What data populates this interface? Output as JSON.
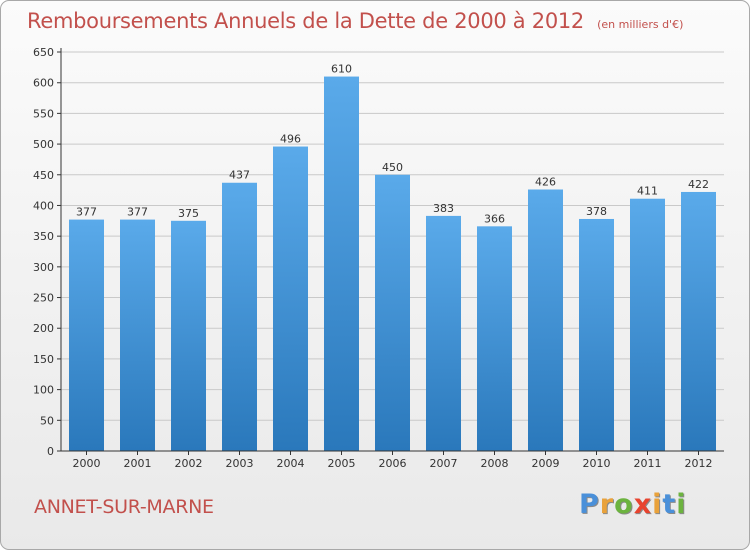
{
  "title": "Remboursements Annuels de la Dette de 2000 à 2012",
  "subtitle": "(en milliers d'€)",
  "city": "ANNET-SUR-MARNE",
  "logo": {
    "letters": [
      "P",
      "r",
      "o",
      "x",
      "i",
      "t",
      "i"
    ],
    "colors": [
      "#4a90d9",
      "#e9a23b",
      "#6cb33f",
      "#e8442f",
      "#e9a23b",
      "#4a90d9",
      "#6cb33f"
    ]
  },
  "colors": {
    "bar_top": "#5aaaea",
    "bar_bottom": "#2a78bb",
    "grid": "#c9c9c9",
    "axis": "#333333"
  },
  "chart_data": {
    "type": "bar",
    "categories": [
      "2000",
      "2001",
      "2002",
      "2003",
      "2004",
      "2005",
      "2006",
      "2007",
      "2008",
      "2009",
      "2010",
      "2011",
      "2012"
    ],
    "values": [
      377,
      377,
      375,
      437,
      496,
      610,
      450,
      383,
      366,
      426,
      378,
      411,
      422
    ],
    "data_labels": [
      "377",
      "377",
      "375",
      "437",
      "496",
      "610",
      "450",
      "383",
      "366",
      "426",
      "378",
      "411",
      "422"
    ],
    "title": "Remboursements Annuels de la Dette de 2000 à 2012",
    "xlabel": "",
    "ylabel": "",
    "ylim": [
      0,
      650
    ],
    "yticks": [
      "0",
      "50",
      "100",
      "150",
      "200",
      "250",
      "300",
      "350",
      "400",
      "450",
      "500",
      "550",
      "600",
      "650"
    ],
    "grid": true
  }
}
